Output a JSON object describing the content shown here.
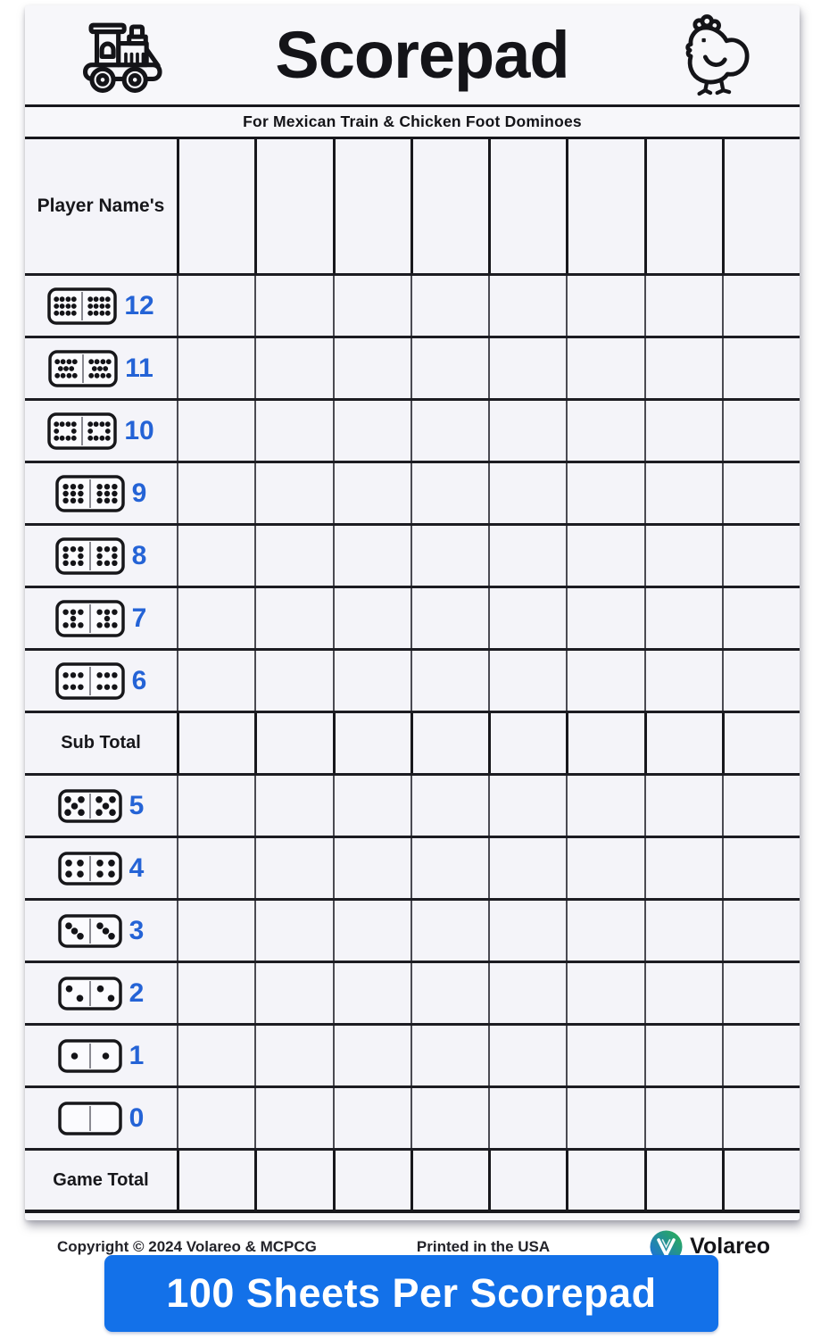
{
  "header": {
    "title": "Scorepad",
    "subtitle": "For Mexican Train & Chicken Foot Dominoes",
    "icons": [
      "train-icon",
      "chicken-icon"
    ]
  },
  "table": {
    "player_header": "Player Name's",
    "player_columns": 8,
    "rows": [
      {
        "type": "domino",
        "value": 12,
        "label": "12"
      },
      {
        "type": "domino",
        "value": 11,
        "label": "11"
      },
      {
        "type": "domino",
        "value": 10,
        "label": "10"
      },
      {
        "type": "domino",
        "value": 9,
        "label": "9"
      },
      {
        "type": "domino",
        "value": 8,
        "label": "8"
      },
      {
        "type": "domino",
        "value": 7,
        "label": "7"
      },
      {
        "type": "domino",
        "value": 6,
        "label": "6"
      },
      {
        "type": "subtotal",
        "label": "Sub Total"
      },
      {
        "type": "domino",
        "value": 5,
        "label": "5"
      },
      {
        "type": "domino",
        "value": 4,
        "label": "4"
      },
      {
        "type": "domino",
        "value": 3,
        "label": "3"
      },
      {
        "type": "domino",
        "value": 2,
        "label": "2"
      },
      {
        "type": "domino",
        "value": 1,
        "label": "1"
      },
      {
        "type": "domino",
        "value": 0,
        "label": "0"
      },
      {
        "type": "gametotal",
        "label": "Game Total"
      }
    ]
  },
  "footer": {
    "copyright": "Copyright © 2024 Volareo & MCPCG",
    "printed": "Printed in the USA",
    "brand": "Volareo",
    "logo_icon": "volareo-logo-icon"
  },
  "banner": {
    "text": "100 Sheets Per Scorepad"
  },
  "colors": {
    "number_blue": "#2463d6",
    "banner_blue": "#1371e9",
    "grid_dark": "#17171c",
    "grid_mid": "#4a4a52",
    "paper": "#f7f7fa",
    "logo_green": "#2bb24c",
    "logo_blue": "#1b6be8"
  }
}
